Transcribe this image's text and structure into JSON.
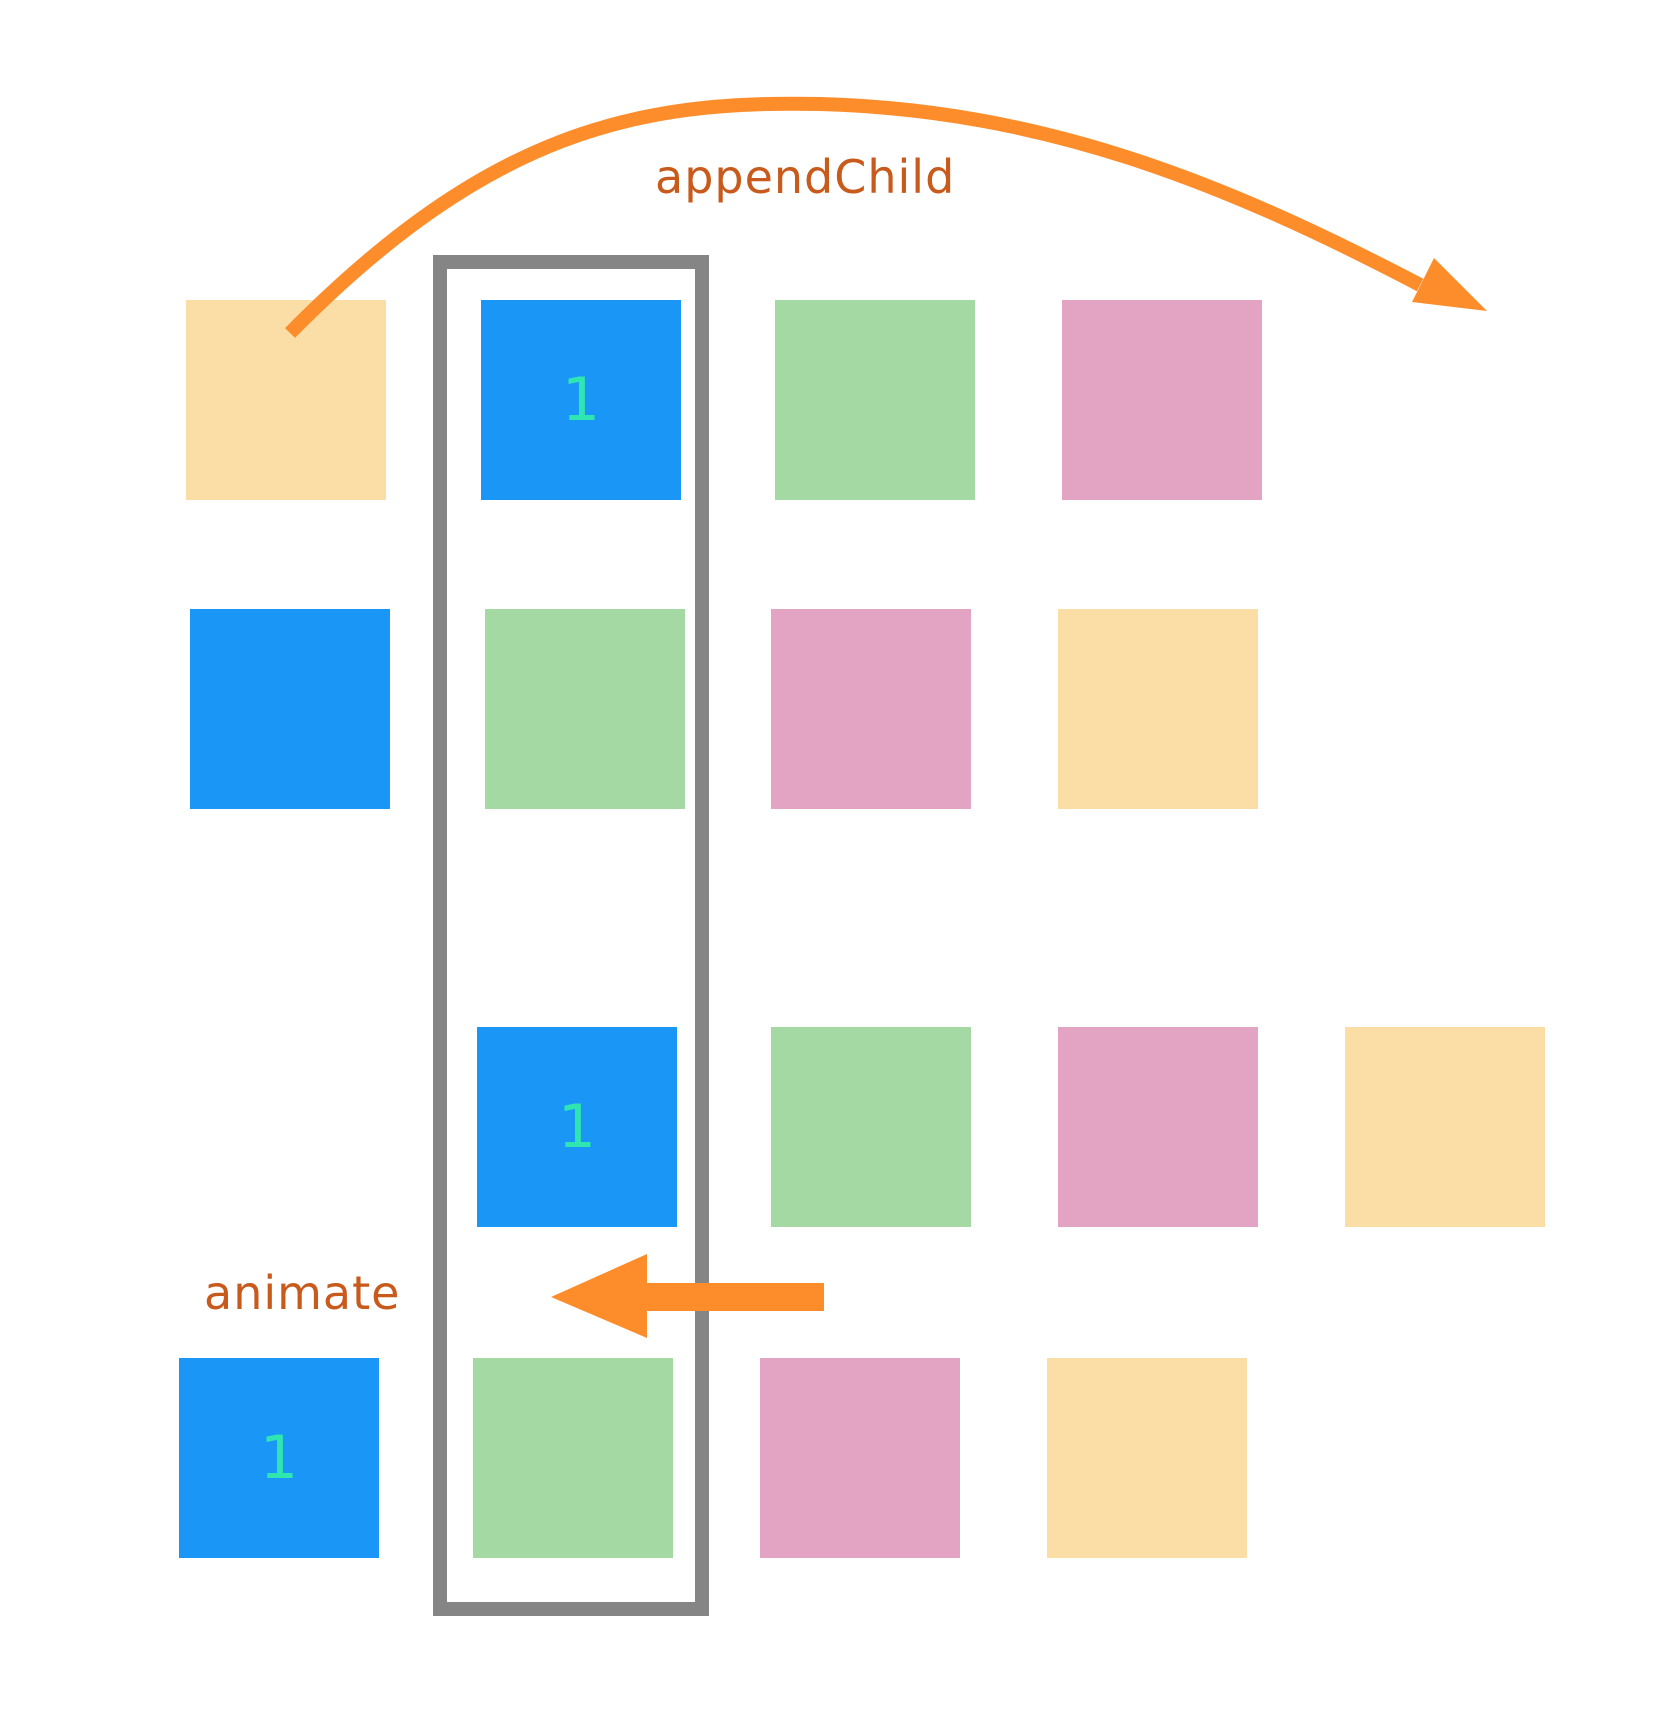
{
  "colors": {
    "blue": "#1a96f6",
    "green": "#a5d9a3",
    "pink": "#e3a4c3",
    "peach": "#fbdea6",
    "frame": "#858585",
    "arrow": "#fd8c2b",
    "caption": "#c85a1c",
    "label": "#2fe6b0"
  },
  "captions": {
    "append": "appendChild",
    "animate": "animate"
  },
  "boxes": [
    {
      "row": 1,
      "position": 1,
      "color": "peach",
      "label": ""
    },
    {
      "row": 1,
      "position": 2,
      "color": "blue",
      "label": "1"
    },
    {
      "row": 1,
      "position": 3,
      "color": "green",
      "label": ""
    },
    {
      "row": 1,
      "position": 4,
      "color": "pink",
      "label": ""
    },
    {
      "row": 2,
      "position": 1,
      "color": "blue",
      "label": ""
    },
    {
      "row": 2,
      "position": 2,
      "color": "green",
      "label": ""
    },
    {
      "row": 2,
      "position": 3,
      "color": "pink",
      "label": ""
    },
    {
      "row": 2,
      "position": 4,
      "color": "peach",
      "label": ""
    },
    {
      "row": 3,
      "position": 1,
      "color": "blue",
      "label": "1"
    },
    {
      "row": 3,
      "position": 2,
      "color": "green",
      "label": ""
    },
    {
      "row": 3,
      "position": 3,
      "color": "pink",
      "label": ""
    },
    {
      "row": 3,
      "position": 4,
      "color": "peach",
      "label": ""
    },
    {
      "row": 4,
      "position": 1,
      "color": "blue",
      "label": "1"
    },
    {
      "row": 4,
      "position": 2,
      "color": "green",
      "label": ""
    },
    {
      "row": 4,
      "position": 3,
      "color": "pink",
      "label": ""
    },
    {
      "row": 4,
      "position": 4,
      "color": "peach",
      "label": ""
    }
  ]
}
